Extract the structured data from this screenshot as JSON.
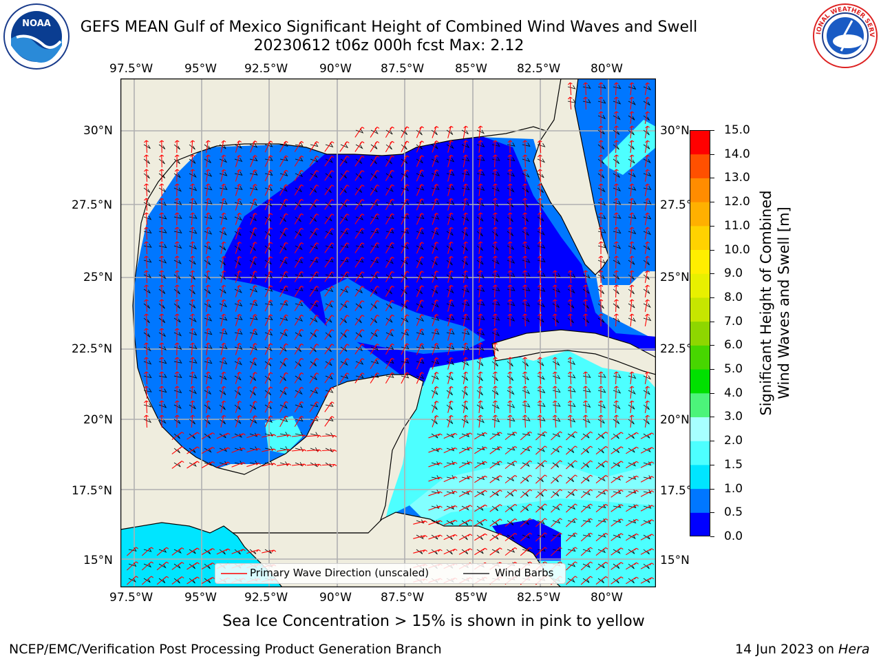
{
  "title": {
    "line1": "GEFS MEAN Gulf of Mexico Significant Height of Combined Wind Waves and Swell",
    "line2": "20230612 t06z 000h fcst   Max: 2.12"
  },
  "logos": {
    "left": {
      "name": "NOAA",
      "ring_text": "NATIONAL OCEANIC AND ATMOSPHERIC ADMINISTRATION · U.S. DEPARTMENT OF COMMERCE"
    },
    "right": {
      "name": "NATIONAL WEATHER SERVICE"
    }
  },
  "map": {
    "lon_ticks": [
      "97.5°W",
      "95°W",
      "92.5°W",
      "90°W",
      "87.5°W",
      "85°W",
      "82.5°W",
      "80°W"
    ],
    "lat_ticks": [
      "30°N",
      "27.5°N",
      "25°N",
      "22.5°N",
      "20°N",
      "17.5°N",
      "15°N"
    ],
    "colors": {
      "land": "#efedde",
      "grid": "#b0b0b0",
      "barb": "#000000",
      "arrow": "#ff0000"
    }
  },
  "legend": {
    "wave_label": "Primary Wave Direction (unscaled)",
    "barb_label": "Wind Barbs"
  },
  "colorbar": {
    "label_line1": "Significant Height of Combined",
    "label_line2": "Wind Waves and Swell [m]",
    "ticks": [
      "0.0",
      "0.5",
      "1.0",
      "1.5",
      "2.0",
      "3.0",
      "4.0",
      "5.0",
      "6.0",
      "7.0",
      "8.0",
      "9.0",
      "10.0",
      "11.0",
      "12.0",
      "13.0",
      "14.0",
      "15.0"
    ],
    "colors": [
      "#0000ff",
      "#0077ff",
      "#00e5ff",
      "#4dffff",
      "#a7ffff",
      "#4cf47a",
      "#00e000",
      "#47d600",
      "#8ed600",
      "#c6e600",
      "#e8f000",
      "#ffee00",
      "#ffd200",
      "#ffb000",
      "#ff8c00",
      "#ff5000",
      "#ff0000"
    ]
  },
  "notes": {
    "ice": "Sea Ice Concentration > 15% is shown in pink to yellow",
    "branch": "NCEP/EMC/Verification Post Processing Product Generation Branch",
    "date": "14 Jun 2023 on ",
    "machine": "Hera"
  }
}
